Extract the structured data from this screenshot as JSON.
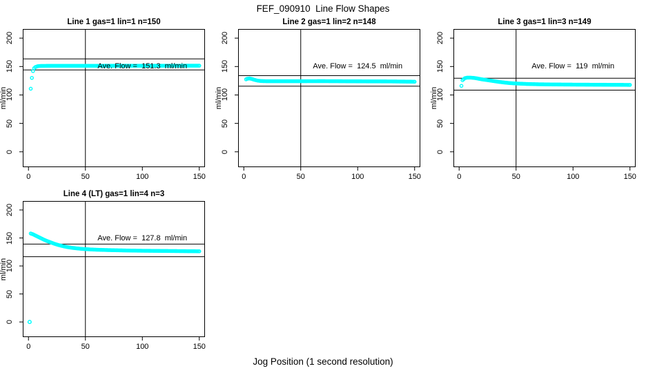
{
  "figure": {
    "title": "FEF_090910  Line Flow Shapes",
    "xlabel": "Jog Position (1 second resolution)",
    "ylabel": "ml/min",
    "point_color": "#00ffff",
    "line_color": "#000000",
    "background": "#ffffff"
  },
  "axes": {
    "xlim": [
      -5,
      155
    ],
    "ylim": [
      -27,
      216
    ],
    "xticks": [
      0,
      50,
      100,
      150
    ],
    "yticks": [
      0,
      50,
      100,
      150,
      200
    ],
    "vline_x": 50,
    "annotation_at": [
      100,
      150
    ],
    "grid": false
  },
  "chart_data": [
    {
      "type": "scatter",
      "title": "Line 1 gas=1 lin=1 n=150",
      "annotation": "Ave. Flow =  151.3  ml/min",
      "ave_flow_ml_min": 151.3,
      "n": 150,
      "ref_lines": [
        163.5,
        144
      ],
      "x_start": 2,
      "x_end": 150,
      "profile": [
        [
          2,
          111
        ],
        [
          3,
          130
        ],
        [
          4,
          142
        ],
        [
          5,
          147
        ],
        [
          6,
          149
        ],
        [
          8,
          150.5
        ],
        [
          10,
          151
        ],
        [
          20,
          151.3
        ],
        [
          60,
          151.3
        ],
        [
          100,
          151.4
        ],
        [
          150,
          151.5
        ]
      ],
      "outliers": []
    },
    {
      "type": "scatter",
      "title": "Line 2 gas=1 lin=2 n=148",
      "annotation": "Ave. Flow =  124.5  ml/min",
      "ave_flow_ml_min": 124.5,
      "n": 148,
      "ref_lines": [
        134,
        115.5
      ],
      "x_start": 2,
      "x_end": 150,
      "profile": [
        [
          2,
          127.5
        ],
        [
          3,
          128.5
        ],
        [
          5,
          129
        ],
        [
          7,
          128.2
        ],
        [
          9,
          126.8
        ],
        [
          12,
          125.3
        ],
        [
          15,
          124.5
        ],
        [
          20,
          124.2
        ],
        [
          40,
          124.2
        ],
        [
          70,
          124.3
        ],
        [
          100,
          124
        ],
        [
          130,
          123.8
        ],
        [
          150,
          123.3
        ]
      ],
      "outliers": []
    },
    {
      "type": "scatter",
      "title": "Line 3 gas=1 lin=3 n=149",
      "annotation": "Ave. Flow =  119  ml/min",
      "ave_flow_ml_min": 119,
      "n": 149,
      "ref_lines": [
        129.5,
        108.5
      ],
      "x_start": 2,
      "x_end": 150,
      "profile": [
        [
          2,
          116
        ],
        [
          3,
          126
        ],
        [
          5,
          129.5
        ],
        [
          7,
          130.5
        ],
        [
          10,
          130.5
        ],
        [
          13,
          130
        ],
        [
          16,
          129
        ],
        [
          20,
          127.5
        ],
        [
          25,
          126
        ],
        [
          30,
          124.5
        ],
        [
          35,
          123
        ],
        [
          40,
          121.8
        ],
        [
          45,
          120.8
        ],
        [
          50,
          120.2
        ],
        [
          60,
          119.3
        ],
        [
          70,
          118.8
        ],
        [
          80,
          118.5
        ],
        [
          100,
          118.2
        ],
        [
          120,
          118
        ],
        [
          150,
          117.7
        ]
      ],
      "outliers": []
    },
    {
      "type": "scatter",
      "title": "Line 4 (LT) gas=1 lin=4 n=3",
      "annotation": "Ave. Flow =  127.8  ml/min",
      "ave_flow_ml_min": 127.8,
      "n": 3,
      "ref_lines": [
        139,
        116.5
      ],
      "x_start": 2,
      "x_end": 150,
      "profile": [
        [
          2,
          158
        ],
        [
          4,
          156.5
        ],
        [
          6,
          154.5
        ],
        [
          8,
          152.5
        ],
        [
          10,
          150.5
        ],
        [
          13,
          147.5
        ],
        [
          16,
          144.8
        ],
        [
          19,
          142.5
        ],
        [
          22,
          140.2
        ],
        [
          25,
          138.2
        ],
        [
          28,
          136.5
        ],
        [
          31,
          135
        ],
        [
          34,
          133.8
        ],
        [
          38,
          132.5
        ],
        [
          42,
          131.5
        ],
        [
          46,
          130.7
        ],
        [
          50,
          130.1
        ],
        [
          55,
          129.5
        ],
        [
          60,
          129
        ],
        [
          70,
          128.4
        ],
        [
          80,
          127.9
        ],
        [
          90,
          127.5
        ],
        [
          100,
          127.2
        ],
        [
          110,
          127
        ],
        [
          120,
          126.8
        ],
        [
          135,
          126.5
        ],
        [
          150,
          126.2
        ]
      ],
      "outliers": [
        [
          1,
          0
        ]
      ]
    }
  ]
}
